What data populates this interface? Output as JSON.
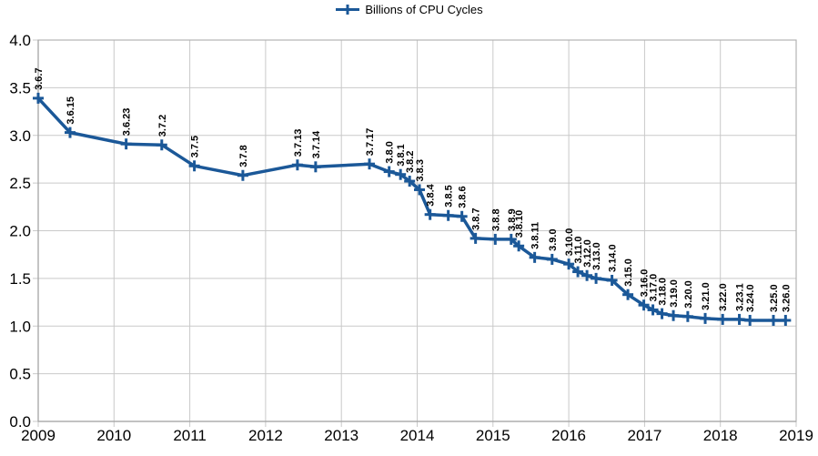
{
  "chart_data": {
    "type": "line",
    "title": "",
    "legend_position": "top-center",
    "grid": true,
    "xlim": [
      2009,
      2019
    ],
    "ylim": [
      0.0,
      4.0
    ],
    "x_ticks": [
      "2009",
      "2010",
      "2011",
      "2012",
      "2013",
      "2014",
      "2015",
      "2016",
      "2017",
      "2018",
      "2019"
    ],
    "y_ticks": [
      "0.0",
      "0.5",
      "1.0",
      "1.5",
      "2.0",
      "2.5",
      "3.0",
      "3.5",
      "4.0"
    ],
    "colors": {
      "series": "#1b5898",
      "grid": "#c9c9c9",
      "axis": "#a6a6a6",
      "border": "#b3b3b3",
      "text": "#000000"
    },
    "series": [
      {
        "name": "Billions of CPU Cycles",
        "marker": "plus",
        "points": [
          {
            "label": "3.6.7",
            "x": 2009.0,
            "y": 3.39
          },
          {
            "label": "3.6.15",
            "x": 2009.42,
            "y": 3.03
          },
          {
            "label": "3.6.23",
            "x": 2010.16,
            "y": 2.91
          },
          {
            "label": "3.7.2",
            "x": 2010.63,
            "y": 2.9
          },
          {
            "label": "3.7.5",
            "x": 2011.06,
            "y": 2.68
          },
          {
            "label": "3.7.8",
            "x": 2011.7,
            "y": 2.58
          },
          {
            "label": "3.7.13",
            "x": 2012.42,
            "y": 2.69
          },
          {
            "label": "3.7.14",
            "x": 2012.66,
            "y": 2.67
          },
          {
            "label": "3.7.17",
            "x": 2013.37,
            "y": 2.7
          },
          {
            "label": "3.8.0",
            "x": 2013.63,
            "y": 2.62
          },
          {
            "label": "3.8.1",
            "x": 2013.78,
            "y": 2.59
          },
          {
            "label": "3.8.2",
            "x": 2013.9,
            "y": 2.52
          },
          {
            "label": "3.8.3",
            "x": 2014.03,
            "y": 2.43
          },
          {
            "label": "3.8.4",
            "x": 2014.17,
            "y": 2.17
          },
          {
            "label": "3.8.5",
            "x": 2014.41,
            "y": 2.16
          },
          {
            "label": "3.8.6",
            "x": 2014.59,
            "y": 2.15
          },
          {
            "label": "3.8.7",
            "x": 2014.77,
            "y": 1.92
          },
          {
            "label": "3.8.8",
            "x": 2015.03,
            "y": 1.91
          },
          {
            "label": "3.8.9",
            "x": 2015.24,
            "y": 1.91
          },
          {
            "label": "3.8.10",
            "x": 2015.34,
            "y": 1.84
          },
          {
            "label": "3.8.11",
            "x": 2015.55,
            "y": 1.72
          },
          {
            "label": "3.9.0",
            "x": 2015.78,
            "y": 1.7
          },
          {
            "label": "3.10.0",
            "x": 2016.0,
            "y": 1.65
          },
          {
            "label": "3.11.0",
            "x": 2016.12,
            "y": 1.57
          },
          {
            "label": "3.12.0",
            "x": 2016.24,
            "y": 1.53
          },
          {
            "label": "3.13.0",
            "x": 2016.36,
            "y": 1.5
          },
          {
            "label": "3.14.0",
            "x": 2016.57,
            "y": 1.48
          },
          {
            "label": "3.15.0",
            "x": 2016.78,
            "y": 1.33
          },
          {
            "label": "3.16.0",
            "x": 2016.99,
            "y": 1.22
          },
          {
            "label": "3.17.0",
            "x": 2017.11,
            "y": 1.17
          },
          {
            "label": "3.18.0",
            "x": 2017.23,
            "y": 1.13
          },
          {
            "label": "3.19.0",
            "x": 2017.38,
            "y": 1.11
          },
          {
            "label": "3.20.0",
            "x": 2017.57,
            "y": 1.1
          },
          {
            "label": "3.21.0",
            "x": 2017.8,
            "y": 1.08
          },
          {
            "label": "3.22.0",
            "x": 2018.03,
            "y": 1.07
          },
          {
            "label": "3.23.1",
            "x": 2018.25,
            "y": 1.07
          },
          {
            "label": "3.24.0",
            "x": 2018.39,
            "y": 1.06
          },
          {
            "label": "3.25.0",
            "x": 2018.7,
            "y": 1.06
          },
          {
            "label": "3.26.0",
            "x": 2018.86,
            "y": 1.06
          }
        ]
      }
    ]
  }
}
